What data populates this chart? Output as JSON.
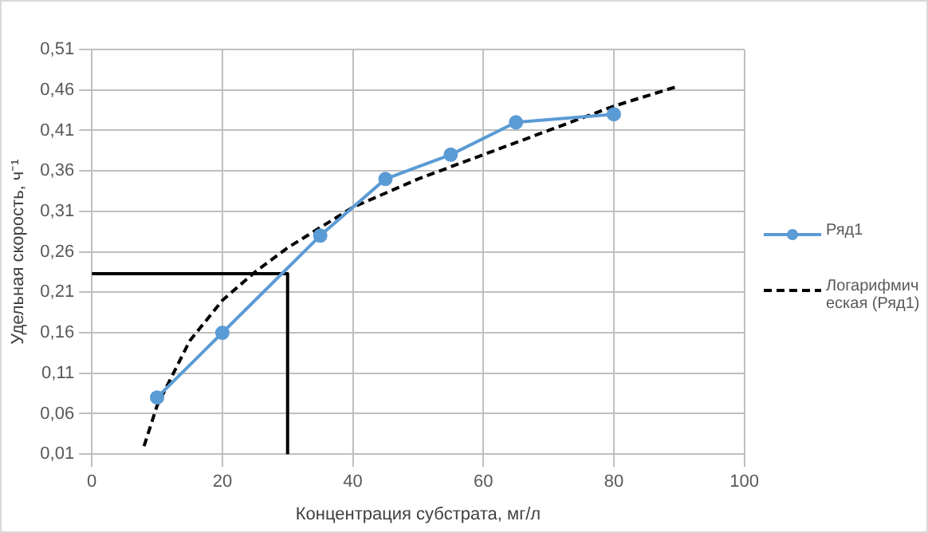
{
  "chart_data": {
    "type": "line",
    "xlabel": "Концентрация субстрата, мг/л",
    "ylabel": "Удельная скорость, ч⁻¹",
    "xlim": [
      0,
      100
    ],
    "xticks": [
      0,
      20,
      40,
      60,
      80,
      100
    ],
    "ylim": [
      0.01,
      0.51
    ],
    "yticks": [
      {
        "value": 0.01,
        "label": "0,01"
      },
      {
        "value": 0.06,
        "label": "0,06"
      },
      {
        "value": 0.11,
        "label": "0,11"
      },
      {
        "value": 0.16,
        "label": "0,16"
      },
      {
        "value": 0.21,
        "label": "0,21"
      },
      {
        "value": 0.26,
        "label": "0,26"
      },
      {
        "value": 0.31,
        "label": "0,31"
      },
      {
        "value": 0.36,
        "label": "0,36"
      },
      {
        "value": 0.41,
        "label": "0,41"
      },
      {
        "value": 0.46,
        "label": "0,46"
      },
      {
        "value": 0.51,
        "label": "0,51"
      }
    ],
    "grid": true,
    "legend": "right",
    "series": [
      {
        "name": "Ряд1",
        "type": "line",
        "color": "#5b9bd5",
        "marker": "circle",
        "line_style": "solid",
        "x": [
          10,
          20,
          35,
          45,
          55,
          65,
          80
        ],
        "values": [
          0.08,
          0.16,
          0.28,
          0.35,
          0.38,
          0.42,
          0.43
        ]
      },
      {
        "name": "Логарифмическая (Ряд1)",
        "type": "line",
        "color": "#000000",
        "marker": "none",
        "line_style": "dashed",
        "x": [
          8,
          10,
          15,
          20,
          25,
          30,
          40,
          50,
          60,
          70,
          80,
          90
        ],
        "values": [
          0.02,
          0.07,
          0.15,
          0.2,
          0.235,
          0.265,
          0.315,
          0.35,
          0.38,
          0.41,
          0.44,
          0.465
        ]
      },
      {
        "type": "line",
        "color": "#000000",
        "marker": "none",
        "line_style": "solid",
        "x": [
          0,
          30,
          30
        ],
        "values": [
          0.233,
          0.233,
          0.01
        ]
      }
    ]
  }
}
